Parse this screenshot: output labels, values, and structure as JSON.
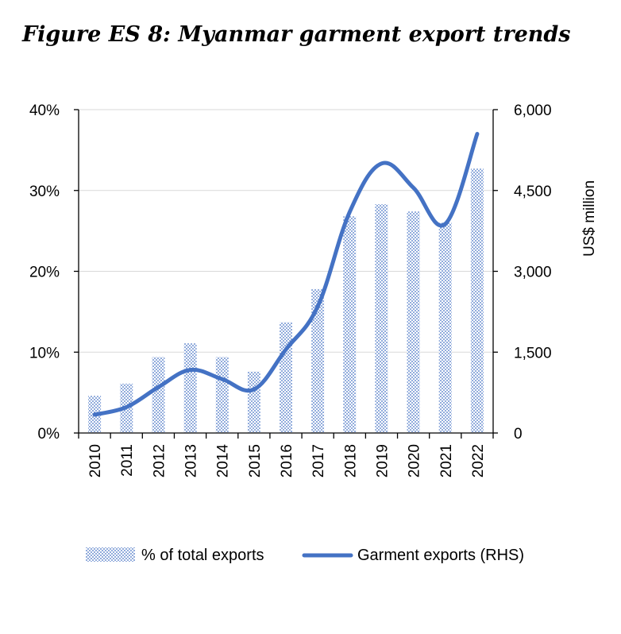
{
  "title": "Figure ES 8: Myanmar garment export trends",
  "colors": {
    "bar": "#4472c4",
    "line": "#4472c4",
    "grid": "#d9d9d9",
    "axis": "#000000"
  },
  "chart_data": {
    "type": "bar",
    "title": "Figure ES 8: Myanmar garment export trends",
    "categories": [
      "2010",
      "2011",
      "2012",
      "2013",
      "2014",
      "2015",
      "2016",
      "2017",
      "2018",
      "2019",
      "2020",
      "2021",
      "2022"
    ],
    "series": [
      {
        "name": "% of total exports",
        "type": "bar",
        "axis": "left",
        "values": [
          4.6,
          6.1,
          9.4,
          11.1,
          9.4,
          7.6,
          13.7,
          17.8,
          26.8,
          28.3,
          27.4,
          26.0,
          32.7
        ]
      },
      {
        "name": "Garment exports (RHS)",
        "type": "line",
        "axis": "right",
        "values": [
          340,
          480,
          850,
          1170,
          1000,
          810,
          1550,
          2350,
          4100,
          5000,
          4550,
          3880,
          5550
        ]
      }
    ],
    "y_left": {
      "ylim": [
        0,
        40
      ],
      "ticks": [
        "0%",
        "10%",
        "20%",
        "30%",
        "40%"
      ]
    },
    "y_right": {
      "ylabel": "US$ million",
      "ylim": [
        0,
        6000
      ],
      "ticks": [
        "0",
        "1,500",
        "3,000",
        "4,500",
        "6,000"
      ]
    },
    "grid": true,
    "legend": "bottom"
  }
}
